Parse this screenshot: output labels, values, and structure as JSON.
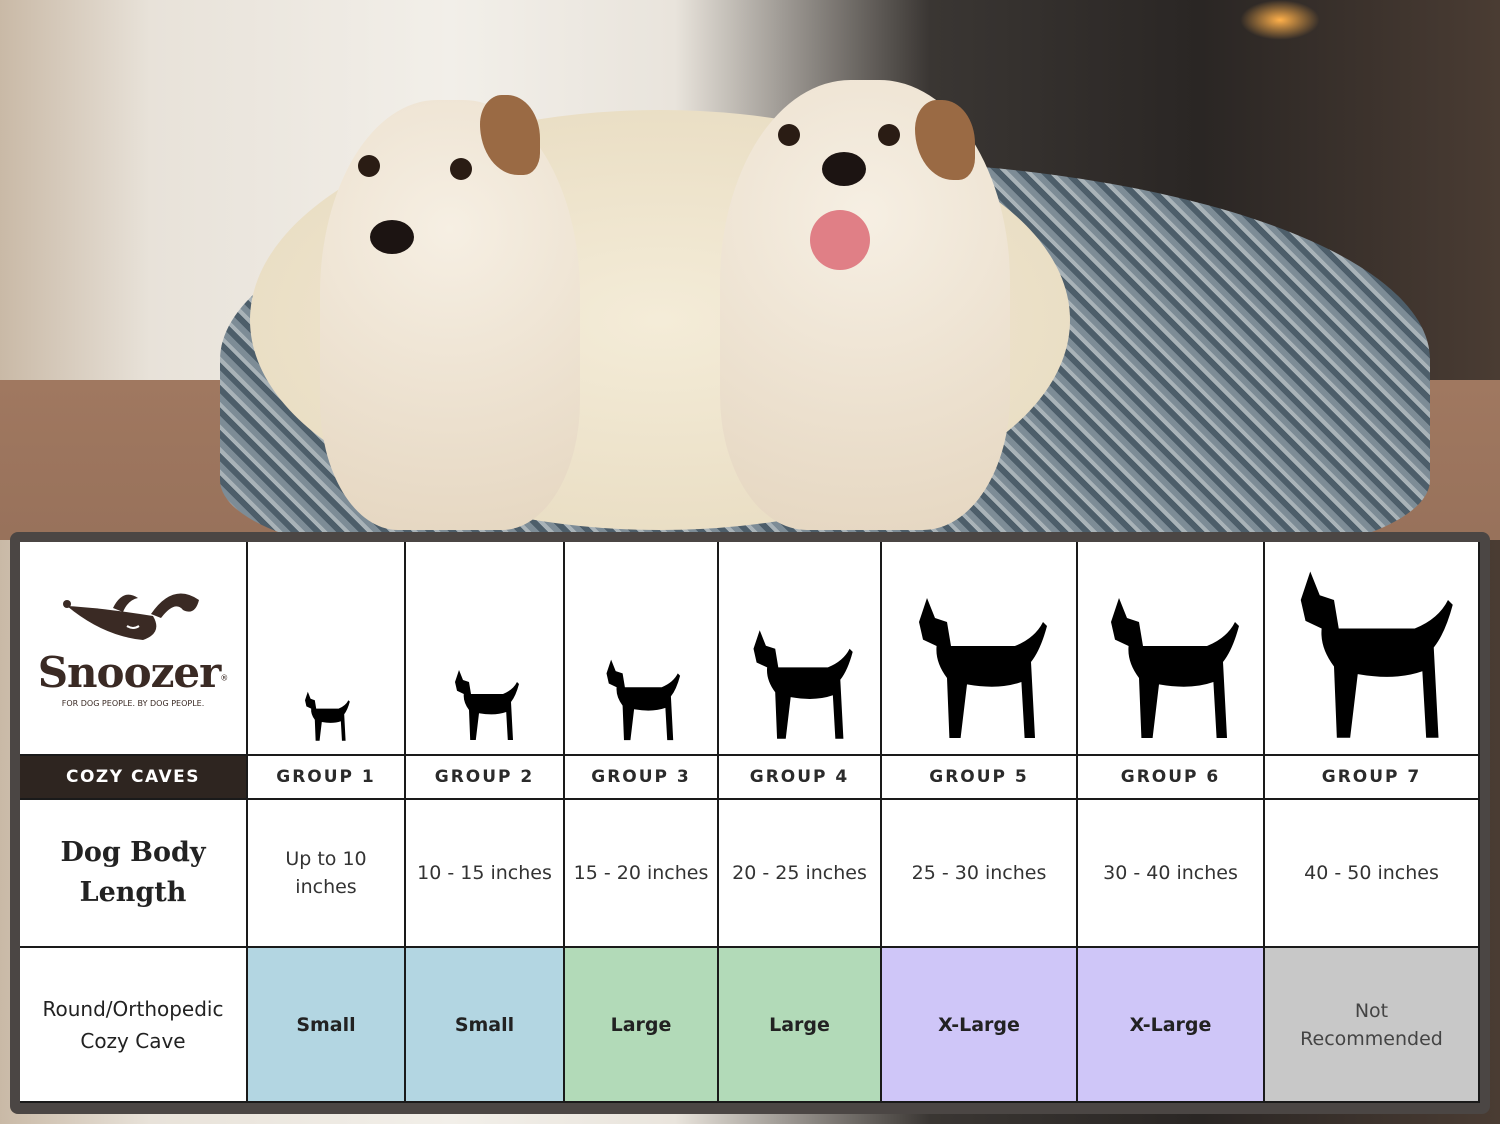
{
  "brand": {
    "name": "Snoozer",
    "registered": "®",
    "tagline": "FOR DOG PEOPLE. BY DOG PEOPLE."
  },
  "table": {
    "product_label": "COZY CAVES",
    "row_labels": {
      "length": "Dog Body Length",
      "size": "Round/Orthopedic Cozy Cave"
    },
    "groups": [
      {
        "name": "GROUP 1",
        "length": "Up to 10 inches",
        "size": "Small",
        "color": "#b3d6e2",
        "icon": "chihuahua-silhouette-icon"
      },
      {
        "name": "GROUP 2",
        "length": "10 - 15 inches",
        "size": "Small",
        "color": "#b3d6e2",
        "icon": "pomeranian-silhouette-icon"
      },
      {
        "name": "GROUP 3",
        "length": "15 - 20 inches",
        "size": "Large",
        "color": "#b2dab8",
        "icon": "boston-terrier-silhouette-icon"
      },
      {
        "name": "GROUP 4",
        "length": "20 - 25 inches",
        "size": "Large",
        "color": "#b2dab8",
        "icon": "shiba-silhouette-icon"
      },
      {
        "name": "GROUP 5",
        "length": "25 - 30 inches",
        "size": "X-Large",
        "color": "#cfc6f8",
        "icon": "golden-retriever-silhouette-icon"
      },
      {
        "name": "GROUP 6",
        "length": "30 - 40 inches",
        "size": "X-Large",
        "color": "#cfc6f8",
        "icon": "doberman-silhouette-icon"
      },
      {
        "name": "GROUP 7",
        "length": "40 - 50 inches",
        "size": "Not Recommended",
        "color": "#c8c8c8",
        "icon": "great-dane-silhouette-icon"
      }
    ]
  },
  "colors": {
    "header_dark": "#2e2520",
    "border": "#1a1a1a"
  }
}
